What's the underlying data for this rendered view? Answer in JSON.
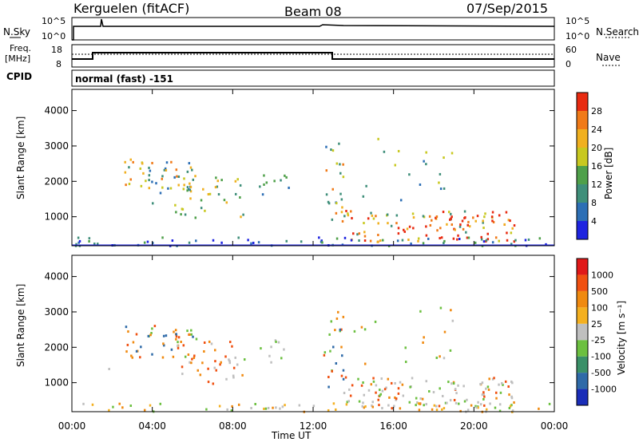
{
  "header": {
    "station": "Kerguelen (fitACF)",
    "beam": "Beam 08",
    "date": "07/Sep/2015"
  },
  "panels": {
    "nsky_label": "N.Sky",
    "nsearch_label": "N.Search",
    "freq_label_1": "Freq.",
    "freq_label_2": "[MHz]",
    "nave_label": "Nave",
    "cpid_label": "CPID",
    "cpid_value": "normal (fast) -151",
    "left_ticks_top": [
      "10^5",
      "10^0"
    ],
    "right_ticks_top": [
      "10^5",
      "10^0"
    ],
    "left_ticks_freq": [
      "18",
      "8"
    ],
    "right_ticks_freq": [
      "60",
      "0"
    ]
  },
  "chart_data": [
    {
      "type": "heatmap",
      "title": "Power",
      "ylabel": "Slant Range [km]",
      "xlabel": "Time UT",
      "ylim": [
        180,
        4600
      ],
      "yticks": [
        "1000",
        "2000",
        "3000",
        "4000"
      ],
      "xticks": [
        "00:00",
        "04:00",
        "08:00",
        "12:00",
        "16:00",
        "20:00",
        "00:00"
      ],
      "colorbar_label": "Power [dB]",
      "colorbar_ticks": [
        "4",
        "8",
        "12",
        "16",
        "20",
        "24",
        "28"
      ],
      "colorscale": [
        "#1e24e0",
        "#2d6fb5",
        "#3f8f7a",
        "#4fa04a",
        "#c8c820",
        "#f0b020",
        "#f07a18",
        "#e82a10"
      ]
    },
    {
      "type": "heatmap",
      "title": "Velocity",
      "ylabel": "Slant Range [km]",
      "xlabel": "Time UT",
      "ylim": [
        180,
        4600
      ],
      "yticks": [
        "1000",
        "2000",
        "3000",
        "4000"
      ],
      "xticks": [
        "00:00",
        "04:00",
        "08:00",
        "12:00",
        "16:00",
        "20:00",
        "00:00"
      ],
      "colorbar_label": "Velocity [m s⁻¹]",
      "colorbar_ticks": [
        "1000",
        "500",
        "100",
        "25",
        "-25",
        "-100",
        "-500",
        "-1000"
      ],
      "colorscale": [
        "#1a2db8",
        "#2e6aa8",
        "#3a9068",
        "#6cc040",
        "#bfbfbf",
        "#f4b020",
        "#f08a10",
        "#f05010",
        "#e01818"
      ]
    }
  ]
}
